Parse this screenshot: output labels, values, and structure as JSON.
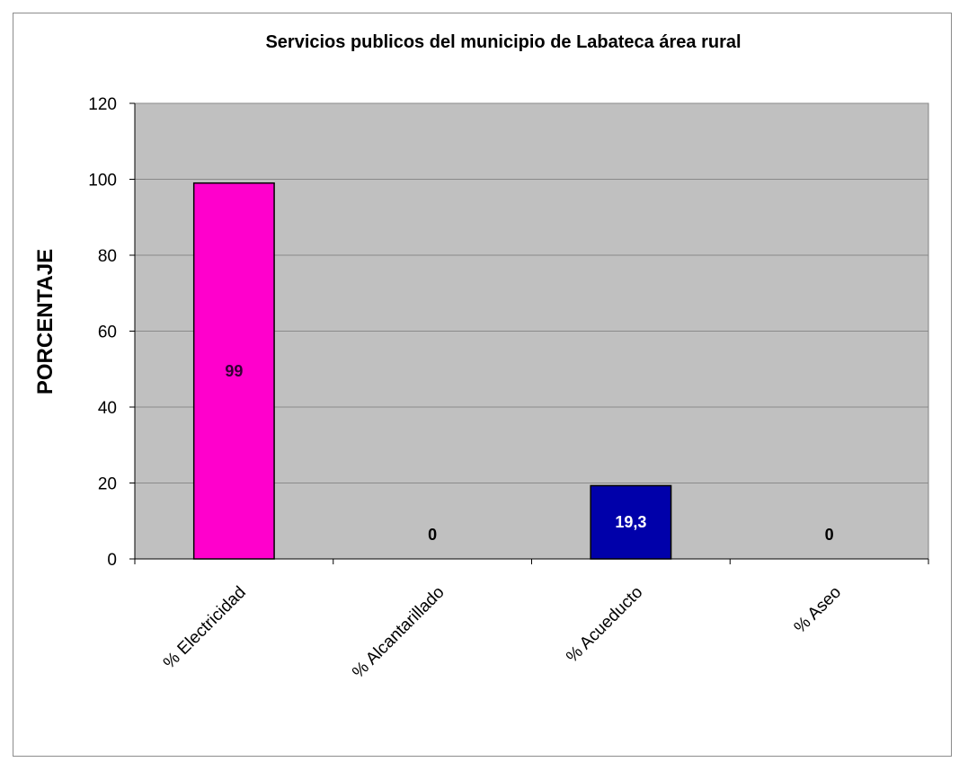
{
  "chart_data": {
    "type": "bar",
    "title": "Servicios publicos del municipio de Labateca área rural",
    "xlabel": "",
    "ylabel": "PORCENTAJE",
    "categories": [
      "% Electricidad",
      "% Alcantarillado",
      "% Acueducto",
      "% Aseo"
    ],
    "values": [
      99,
      0,
      19.3,
      0
    ],
    "data_labels": [
      "99",
      "0",
      "19,3",
      "0"
    ],
    "bar_colors": [
      "#ff00cc",
      "#9999ff",
      "#0000aa",
      "#9999ff"
    ],
    "data_label_colors": [
      "#330033",
      "#000000",
      "#ffffff",
      "#000000"
    ],
    "ylim": [
      0,
      120
    ],
    "yticks": [
      0,
      20,
      40,
      60,
      80,
      100,
      120
    ],
    "plot_background": "#c0c0c0",
    "grid": true,
    "legend": "none"
  }
}
